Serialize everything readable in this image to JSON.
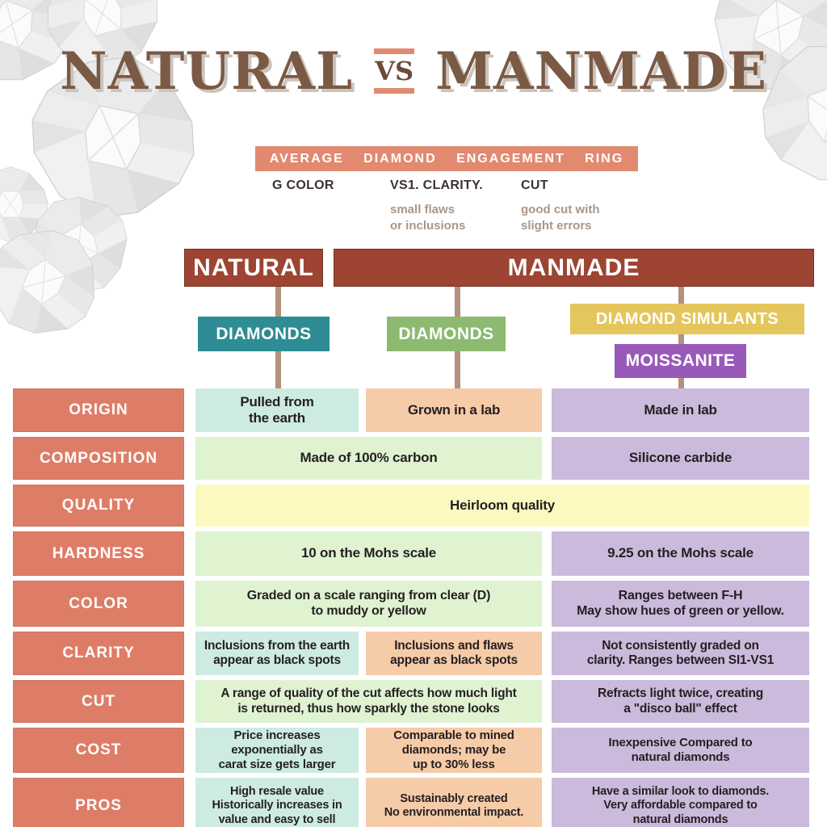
{
  "title": {
    "left": "NATURAL",
    "vs": "VS",
    "right": "MANMADE"
  },
  "banner": {
    "text": "AVERAGE DIAMOND ENGAGEMENT RING"
  },
  "specs": [
    {
      "label": "G COLOR",
      "note": ""
    },
    {
      "label": "VS1. CLARITY.",
      "note": "small flaws\nor inclusions"
    },
    {
      "label": "CUT",
      "note": "good cut with\nslight errors"
    }
  ],
  "tree": {
    "natural": "NATURAL",
    "manmade": "MANMADE",
    "natural_diamonds": "DIAMONDS",
    "lab_diamonds": "DIAMONDS",
    "simulants": "DIAMOND SIMULANTS",
    "moissanite": "MOISSANITE"
  },
  "table": {
    "rows": [
      {
        "label": "ORIGIN",
        "cells": [
          {
            "col": "c1",
            "span": 1,
            "color": "mint",
            "text": "Pulled from\nthe earth"
          },
          {
            "col": "c2",
            "span": 1,
            "color": "peach",
            "text": "Grown in a lab"
          },
          {
            "col": "c3",
            "span": 1,
            "color": "lavender",
            "text": "Made in lab"
          }
        ]
      },
      {
        "label": "COMPOSITION",
        "cells": [
          {
            "col": "c1",
            "span": 2,
            "color": "green",
            "text": "Made of 100% carbon"
          },
          {
            "col": "c3",
            "span": 1,
            "color": "lavender",
            "text": "Silicone carbide"
          }
        ]
      },
      {
        "label": "QUALITY",
        "cells": [
          {
            "col": "c1",
            "span": 3,
            "color": "yellow",
            "text": "Heirloom quality"
          }
        ]
      },
      {
        "label": "HARDNESS",
        "cells": [
          {
            "col": "c1",
            "span": 2,
            "color": "green",
            "text": "10 on the Mohs scale"
          },
          {
            "col": "c3",
            "span": 1,
            "color": "lavender",
            "text": "9.25 on the Mohs scale"
          }
        ]
      },
      {
        "label": "COLOR",
        "cells": [
          {
            "col": "c1",
            "span": 2,
            "color": "green",
            "text": "Graded on a scale ranging from clear (D)\nto muddy or yellow"
          },
          {
            "col": "c3",
            "span": 1,
            "color": "lavender",
            "text": "Ranges between F-H\nMay show hues of green or yellow."
          }
        ]
      },
      {
        "label": "CLARITY",
        "cells": [
          {
            "col": "c1",
            "span": 1,
            "color": "mint",
            "text": "Inclusions from the earth\nappear as black spots"
          },
          {
            "col": "c2",
            "span": 1,
            "color": "peach",
            "text": "Inclusions and flaws\nappear as black spots"
          },
          {
            "col": "c3",
            "span": 1,
            "color": "lavender",
            "text": "Not consistently graded on\nclarity. Ranges between SI1-VS1"
          }
        ]
      },
      {
        "label": "CUT",
        "cells": [
          {
            "col": "c1",
            "span": 2,
            "color": "green",
            "text": "A range of quality of the cut affects how much light\nis returned, thus how sparkly the stone looks"
          },
          {
            "col": "c3",
            "span": 1,
            "color": "lavender",
            "text": "Refracts light twice, creating\na \"disco ball\" effect"
          }
        ]
      },
      {
        "label": "COST",
        "cells": [
          {
            "col": "c1",
            "span": 1,
            "color": "mint",
            "text": "Price increases\nexponentially as\ncarat size gets larger"
          },
          {
            "col": "c2",
            "span": 1,
            "color": "peach",
            "text": "Comparable to mined\ndiamonds; may be\nup to 30% less"
          },
          {
            "col": "c3",
            "span": 1,
            "color": "lavender",
            "text": "Inexpensive Compared to\nnatural diamonds"
          }
        ]
      },
      {
        "label": "PROS",
        "cells": [
          {
            "col": "c1",
            "span": 1,
            "color": "mint",
            "text": "High resale value\nHistorically increases in\nvalue and easy to sell"
          },
          {
            "col": "c2",
            "span": 1,
            "color": "peach",
            "text": "Sustainably created\nNo environmental impact."
          },
          {
            "col": "c3",
            "span": 1,
            "color": "lavender",
            "text": "Have a similar look to diamonds.\nVery affordable compared to\nnatural diamonds"
          }
        ]
      }
    ]
  },
  "icons": {
    "diamond_photo": "diamond-gem-photo"
  },
  "colors": {
    "title_brown": "#7a5a45",
    "title_shadow": "#ccc4bc",
    "accent_salmon": "#e18a70",
    "label_salmon": "#de7d67",
    "brick_red": "#9d4432",
    "stem_tan": "#b2917e",
    "teal": "#2d8c94",
    "green": "#8bba70",
    "yellow": "#e4c65d",
    "purple": "#9859b9",
    "cell_mint": "#cdebe1",
    "cell_peach": "#f6cba8",
    "cell_lavender": "#cbbadc",
    "cell_green": "#dff3d1",
    "cell_yellow": "#fcf9c0",
    "spec_note_gray": "#a8968a",
    "text_dark": "#241f21"
  }
}
